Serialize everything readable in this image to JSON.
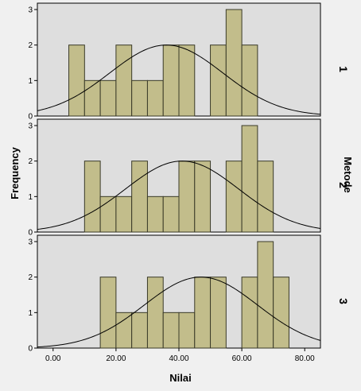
{
  "chart_data": {
    "type": "bar",
    "subtype": "histogram-panels-with-normal-curve",
    "xlabel": "Nilai",
    "ylabel": "Frequency",
    "panel_axis_label": "Metode",
    "x_ticks": [
      0,
      20,
      40,
      60,
      80
    ],
    "x_tick_labels": [
      "0.00",
      "20.00",
      "40.00",
      "60.00",
      "80.00"
    ],
    "xlim": [
      -5,
      85
    ],
    "ylim": [
      0,
      3
    ],
    "y_ticks": [
      0,
      1,
      2,
      3
    ],
    "grid": false,
    "colors": {
      "bar_fill": "#c2bd8b",
      "bar_stroke": "#3a3a28",
      "panel_bg": "#dedede",
      "outer_bg": "#f0f0f0",
      "curve": "#000000"
    },
    "panels": [
      {
        "label": "1",
        "bin_start": 5,
        "bin_width": 5,
        "values": [
          2,
          1,
          1,
          2,
          1,
          1,
          2,
          2,
          0,
          2,
          3,
          2
        ],
        "normal_curve": {
          "mean": 36,
          "sd": 18,
          "peak": 2.0
        }
      },
      {
        "label": "2",
        "bin_start": 10,
        "bin_width": 5,
        "values": [
          2,
          1,
          1,
          2,
          1,
          1,
          2,
          2,
          0,
          2,
          3,
          2
        ],
        "normal_curve": {
          "mean": 41,
          "sd": 18,
          "peak": 2.0
        }
      },
      {
        "label": "3",
        "bin_start": 15,
        "bin_width": 5,
        "values": [
          2,
          1,
          1,
          2,
          1,
          1,
          2,
          2,
          0,
          2,
          3,
          2
        ],
        "normal_curve": {
          "mean": 47,
          "sd": 18,
          "peak": 2.0
        }
      }
    ]
  }
}
